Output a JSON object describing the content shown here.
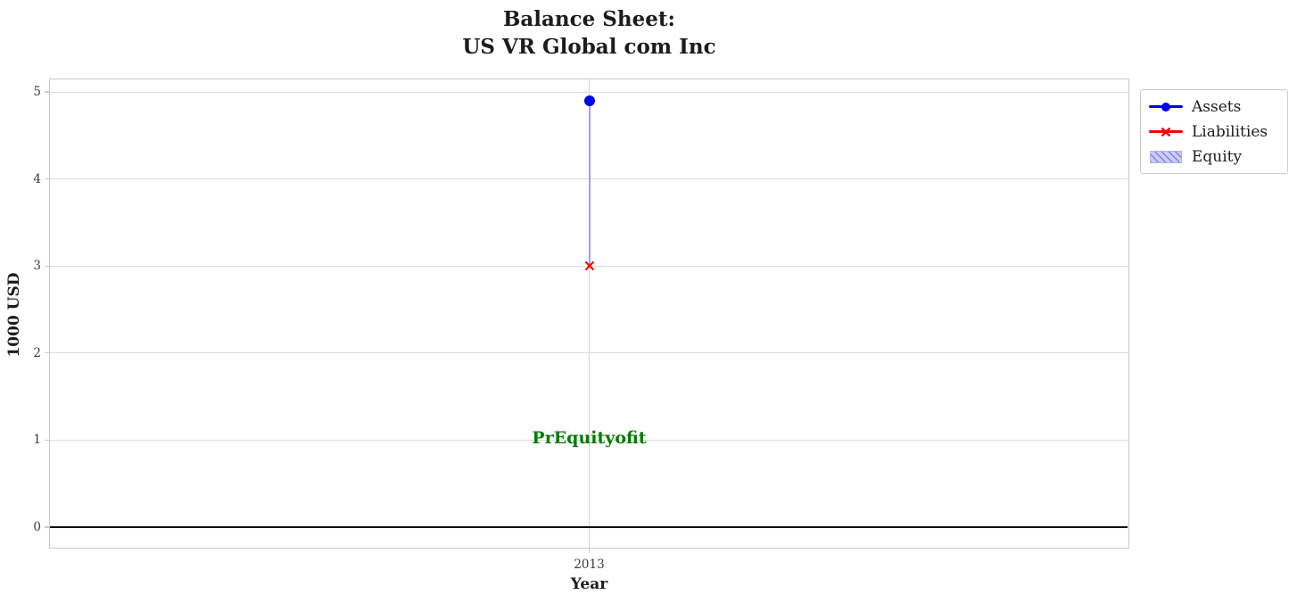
{
  "chart_data": {
    "type": "line",
    "title": "Balance Sheet:\nUS VR Global com Inc",
    "xlabel": "Year",
    "ylabel": "1000 USD",
    "x": [
      2013
    ],
    "xtick_labels": [
      "2013"
    ],
    "yticks": [
      0,
      1,
      2,
      3,
      4,
      5
    ],
    "ylim": [
      -0.246,
      5.154
    ],
    "grid": true,
    "series": [
      {
        "name": "Assets",
        "values": [
          4.9
        ],
        "color": "#0000ee",
        "marker": "circle"
      },
      {
        "name": "Liabilities",
        "values": [
          3.0
        ],
        "color": "#ff0000",
        "marker": "x"
      },
      {
        "name": "Equity",
        "band_from": 3.0,
        "band_to": 4.9,
        "fill_color": "#ccccff",
        "hatch_color": "#8383de",
        "line_color": "#a49ede"
      }
    ],
    "zero_line": {
      "y": 0,
      "color": "#000000"
    },
    "annotation": {
      "text": "PrEquityofit",
      "x": 2013,
      "y": 1.0,
      "color": "#007d00"
    },
    "legend": {
      "position": "outside upper right",
      "entries": [
        "Assets",
        "Liabilities",
        "Equity"
      ]
    }
  }
}
